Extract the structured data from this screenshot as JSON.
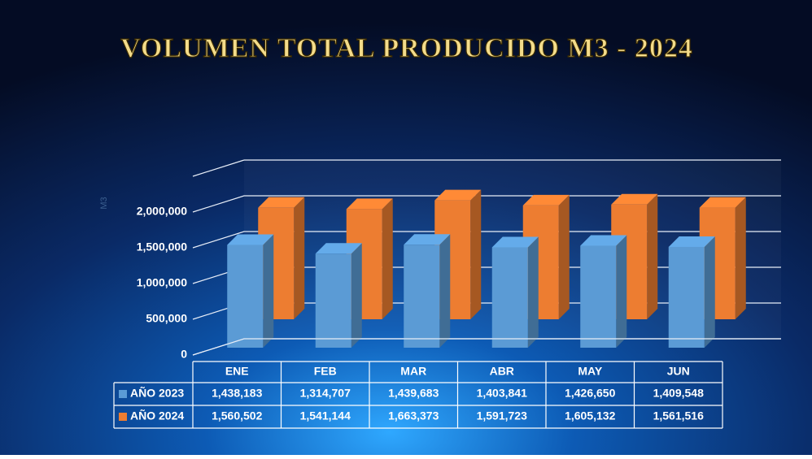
{
  "chart_data": {
    "type": "bar3d",
    "title": "VOLUMEN TOTAL PRODUCIDO M3 - 2024",
    "y_label": "M3",
    "categories": [
      "ENE",
      "FEB",
      "MAR",
      "ABR",
      "MAY",
      "JUN"
    ],
    "series": [
      {
        "name": "AÑO 2023",
        "color": "#5b9bd5",
        "values": [
          1438183,
          1314707,
          1439683,
          1403841,
          1426650,
          1409548
        ],
        "value_labels": [
          "1,438,183",
          "1,314,707",
          "1,439,683",
          "1,403,841",
          "1,426,650",
          "1,409,548"
        ]
      },
      {
        "name": "AÑO 2024",
        "color": "#ed7d31",
        "values": [
          1560502,
          1541144,
          1663373,
          1591723,
          1605132,
          1561516
        ],
        "value_labels": [
          "1,560,502",
          "1,541,144",
          "1,663,373",
          "1,591,723",
          "1,605,132",
          "1,561,516"
        ]
      }
    ],
    "ylim": [
      0,
      2500000
    ],
    "yticks": [
      0,
      {
        "value": 500000,
        "label": "500,000"
      },
      {
        "value": 1000000,
        "label": "1,000,000"
      },
      {
        "value": 1500000,
        "label": "1,500,000"
      },
      {
        "value": 2000000,
        "label": "2,000,000"
      }
    ],
    "grid": true
  }
}
